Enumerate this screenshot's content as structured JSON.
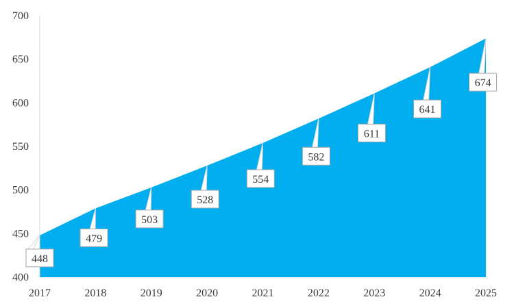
{
  "chart_data": {
    "type": "area",
    "x": [
      "2017",
      "2018",
      "2019",
      "2020",
      "2021",
      "2022",
      "2023",
      "2024",
      "2025"
    ],
    "series": [
      {
        "values": [
          448,
          479,
          503,
          528,
          554,
          582,
          611,
          641,
          674
        ]
      }
    ],
    "data_labels": [
      "448",
      "479",
      "503",
      "528",
      "554",
      "582",
      "611",
      "641",
      "674"
    ],
    "y_ticks": [
      "400",
      "450",
      "500",
      "550",
      "600",
      "650",
      "700"
    ],
    "ylim": [
      400,
      700
    ],
    "grid": false,
    "legend": "none",
    "colors": {
      "area": "#00AEEF",
      "label_border": "#A6A6A6",
      "callout": "#D9D9D9",
      "axis": "#D9D9D9"
    }
  }
}
